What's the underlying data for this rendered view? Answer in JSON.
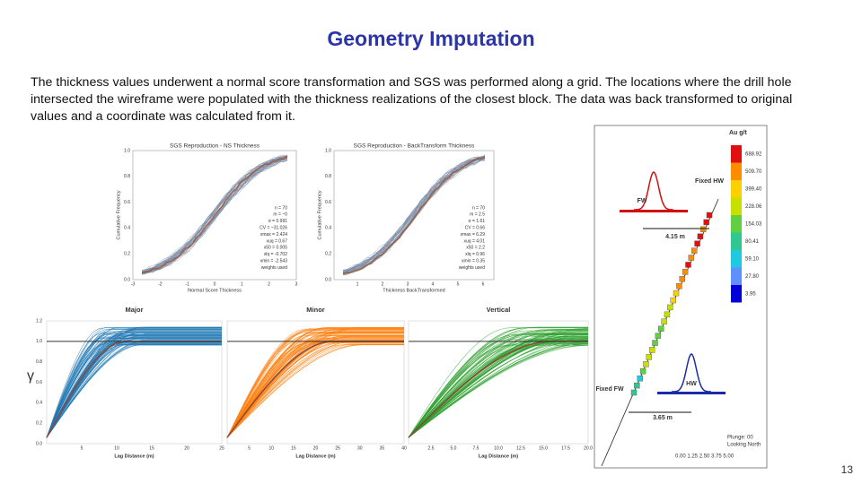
{
  "header": {
    "title": "Geometry Imputation"
  },
  "body": {
    "text": "The thickness values underwent a normal score transformation and SGS was performed along a grid. The locations where the drill hole intersected the wireframe were populated with the thickness realizations of the closest block. The data was back transformed to original values and a coordinate was calculated from it."
  },
  "figures": {
    "cdf_plots": [
      {
        "title": "SGS Reproduction - NS Thickness",
        "x_label": "Normal Score Thickness",
        "y_label": "Cumulative Frequency",
        "x_ticks": [
          "-3",
          "-2",
          "-1",
          "0",
          "1",
          "2",
          "3"
        ],
        "y_ticks": [
          "0.0",
          "0.2",
          "0.4",
          "0.6",
          "0.8",
          "1.0"
        ],
        "stats": [
          "n = 70",
          "m = ~0",
          "σ = 0.991",
          "CV = ~31.026",
          "xmax = 2.424",
          "xuq = 0.67",
          "x50 = 0.005",
          "xlq = -0.702",
          "xmin = -2.543",
          "weights used"
        ]
      },
      {
        "title": "SGS Reproduction - BackTransform Thickness",
        "x_label": "Thickness BackTransformed",
        "y_label": "Cumulative Frequency",
        "x_ticks": [
          "1",
          "2",
          "3",
          "4",
          "5",
          "6"
        ],
        "y_ticks": [
          "0.0",
          "0.2",
          "0.4",
          "0.6",
          "0.8",
          "1.0"
        ],
        "stats": [
          "n = 70",
          "m = 2.5",
          "σ = 1.61",
          "CV = 0.66",
          "xmax = 6.29",
          "xuq = 4.01",
          "x50 = 2.2",
          "xlq = 0.96",
          "xmin = 0.35",
          "weights used"
        ]
      }
    ],
    "variograms": {
      "y_symbol": "γ",
      "y_ticks": [
        "0.0",
        "0.2",
        "0.4",
        "0.6",
        "0.8",
        "1.0",
        "1.2"
      ],
      "panels": [
        {
          "title": "Major",
          "x_label": "Lag Distance (m)",
          "x_ticks": [
            "5",
            "10",
            "15",
            "20",
            "25"
          ]
        },
        {
          "title": "Minor",
          "x_label": "Lag Distance (m)",
          "x_ticks": [
            "5",
            "10",
            "15",
            "20",
            "25",
            "30",
            "35",
            "40"
          ]
        },
        {
          "title": "Vertical",
          "x_label": "Lag Distance (m)",
          "x_ticks": [
            "2.5",
            "5.0",
            "7.5",
            "10.0",
            "12.5",
            "15.0",
            "17.5",
            "20.0"
          ]
        }
      ]
    },
    "section": {
      "legend_title": "Au g/t",
      "legend_values": [
        "688.92",
        "509.70",
        "399.40",
        "228.06",
        "154.03",
        "80.41",
        "59.10",
        "27.80",
        "3.95"
      ],
      "labels": {
        "fixed_hw": "Fixed HW",
        "fw": "FW",
        "upper_width": "4.15 m",
        "hw": "HW",
        "fixed_fw": "Fixed FW",
        "lower_width": "3.65 m",
        "plunge": "Plunge: 00",
        "looking": "Looking North",
        "scale": "0.00 1.25 2.50 3.75 5.00"
      }
    }
  },
  "footer": {
    "page_number": "13"
  }
}
